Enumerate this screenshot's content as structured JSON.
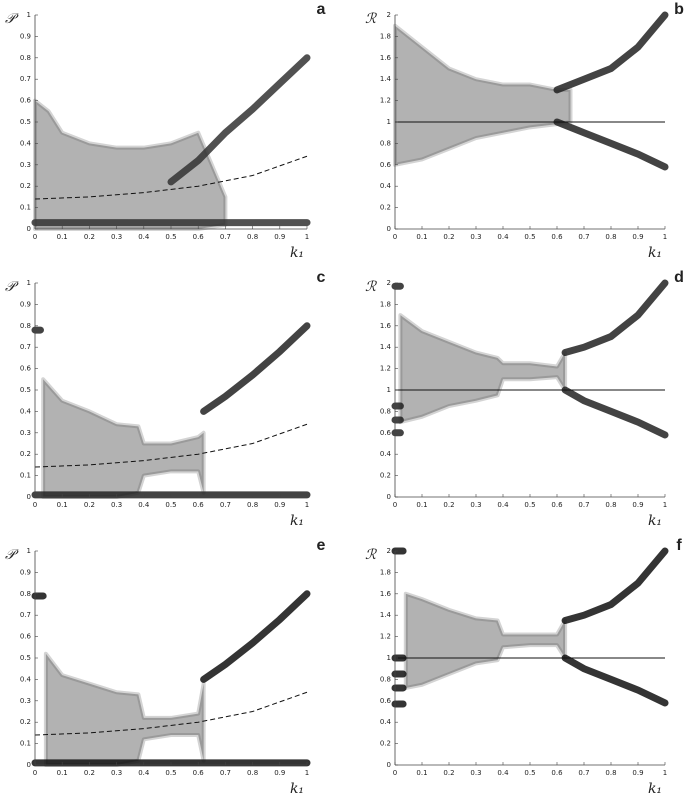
{
  "chart_data": [
    {
      "type": "scatter",
      "letter": "a",
      "y_label": "𝒫",
      "x_label": "k₁",
      "xlim": [
        0,
        1
      ],
      "xticks": [
        0,
        0.1,
        0.2,
        0.3,
        0.4,
        0.5,
        0.6,
        0.7,
        0.8,
        0.9,
        1
      ],
      "ylim": [
        0,
        1
      ],
      "yticks": [
        0,
        0.1,
        0.2,
        0.3,
        0.4,
        0.5,
        0.6,
        0.7,
        0.8,
        0.9,
        1
      ],
      "series": [
        {
          "style": "band",
          "color": "#555555",
          "x": [
            0,
            0.05,
            0.1,
            0.2,
            0.3,
            0.4,
            0.5,
            0.6,
            0.7
          ],
          "low": [
            0,
            0,
            0,
            0,
            0,
            0,
            0,
            0,
            0.02
          ],
          "high": [
            0.6,
            0.55,
            0.45,
            0.4,
            0.38,
            0.38,
            0.4,
            0.45,
            0.15
          ]
        },
        {
          "style": "branch",
          "color": "#333333",
          "x": [
            0.5,
            0.6,
            0.7,
            0.8,
            0.9,
            1
          ],
          "values": [
            0.22,
            0.32,
            0.45,
            0.56,
            0.68,
            0.8
          ]
        },
        {
          "style": "branch",
          "color": "#333333",
          "x": [
            0,
            1
          ],
          "values": [
            0.03,
            0.03
          ]
        },
        {
          "style": "dashed",
          "color": "#111111",
          "x": [
            0,
            0.2,
            0.4,
            0.6,
            0.8,
            1
          ],
          "values": [
            0.14,
            0.15,
            0.17,
            0.2,
            0.25,
            0.34
          ]
        }
      ]
    },
    {
      "type": "scatter",
      "letter": "b",
      "y_label": "ℛ",
      "x_label": "k₁",
      "xlim": [
        0,
        1
      ],
      "xticks": [
        0,
        0.1,
        0.2,
        0.3,
        0.4,
        0.5,
        0.6,
        0.7,
        0.8,
        0.9,
        1
      ],
      "ylim": [
        0,
        2
      ],
      "yticks": [
        0,
        0.2,
        0.4,
        0.6,
        0.8,
        1,
        1.2,
        1.4,
        1.6,
        1.8,
        2
      ],
      "series": [
        {
          "style": "band",
          "color": "#555555",
          "x": [
            0,
            0.1,
            0.2,
            0.3,
            0.4,
            0.5,
            0.6,
            0.65
          ],
          "low": [
            0.6,
            0.65,
            0.75,
            0.85,
            0.9,
            0.95,
            0.98,
            1.0
          ],
          "high": [
            1.9,
            1.7,
            1.5,
            1.4,
            1.35,
            1.35,
            1.3,
            1.3
          ]
        },
        {
          "style": "branch",
          "color": "#222222",
          "x": [
            0.6,
            0.7,
            0.8,
            0.9,
            1
          ],
          "values": [
            1.3,
            1.4,
            1.5,
            1.7,
            2.0
          ]
        },
        {
          "style": "branch",
          "color": "#222222",
          "x": [
            0.6,
            0.7,
            0.8,
            0.9,
            1
          ],
          "values": [
            1.0,
            0.9,
            0.8,
            0.7,
            0.58
          ]
        },
        {
          "style": "line",
          "color": "#111111",
          "x": [
            0,
            1
          ],
          "values": [
            1,
            1
          ]
        }
      ]
    },
    {
      "type": "scatter",
      "letter": "c",
      "y_label": "𝒫",
      "x_label": "k₁",
      "xlim": [
        0,
        1
      ],
      "xticks": [
        0,
        0.1,
        0.2,
        0.3,
        0.4,
        0.5,
        0.6,
        0.7,
        0.8,
        0.9,
        1
      ],
      "ylim": [
        0,
        1
      ],
      "yticks": [
        0,
        0.1,
        0.2,
        0.3,
        0.4,
        0.5,
        0.6,
        0.7,
        0.8,
        0.9,
        1
      ],
      "series": [
        {
          "style": "band",
          "color": "#555555",
          "x": [
            0.03,
            0.1,
            0.2,
            0.3,
            0.38,
            0.4,
            0.5,
            0.6,
            0.62
          ],
          "low": [
            0,
            0,
            0,
            0,
            0.02,
            0.1,
            0.12,
            0.12,
            0.02
          ],
          "high": [
            0.55,
            0.45,
            0.4,
            0.34,
            0.33,
            0.25,
            0.25,
            0.28,
            0.3
          ]
        },
        {
          "style": "branch",
          "color": "#222222",
          "x": [
            0.62,
            0.7,
            0.8,
            0.9,
            1
          ],
          "values": [
            0.4,
            0.47,
            0.57,
            0.68,
            0.8
          ]
        },
        {
          "style": "branch",
          "color": "#222222",
          "x": [
            0,
            0.02
          ],
          "values": [
            0.78,
            0.78
          ]
        },
        {
          "style": "branch",
          "color": "#222222",
          "x": [
            0,
            1
          ],
          "values": [
            0.01,
            0.01
          ]
        },
        {
          "style": "dashed",
          "color": "#111111",
          "x": [
            0,
            0.2,
            0.4,
            0.6,
            0.8,
            1
          ],
          "values": [
            0.14,
            0.15,
            0.17,
            0.2,
            0.25,
            0.34
          ]
        }
      ]
    },
    {
      "type": "scatter",
      "letter": "d",
      "y_label": "ℛ",
      "x_label": "k₁",
      "xlim": [
        0,
        1
      ],
      "xticks": [
        0,
        0.1,
        0.2,
        0.3,
        0.4,
        0.5,
        0.6,
        0.7,
        0.8,
        0.9,
        1
      ],
      "ylim": [
        0,
        2
      ],
      "yticks": [
        0,
        0.2,
        0.4,
        0.6,
        0.8,
        1,
        1.2,
        1.4,
        1.6,
        1.8,
        2
      ],
      "series": [
        {
          "style": "band",
          "color": "#555555",
          "x": [
            0.02,
            0.1,
            0.2,
            0.3,
            0.38,
            0.4,
            0.5,
            0.6,
            0.63
          ],
          "low": [
            0.7,
            0.75,
            0.85,
            0.9,
            0.95,
            1.1,
            1.1,
            1.12,
            1.0
          ],
          "high": [
            1.7,
            1.55,
            1.45,
            1.35,
            1.3,
            1.25,
            1.25,
            1.22,
            1.35
          ]
        },
        {
          "style": "branch",
          "color": "#222222",
          "x": [
            0.63,
            0.7,
            0.8,
            0.9,
            1
          ],
          "values": [
            1.35,
            1.4,
            1.5,
            1.7,
            2.0
          ]
        },
        {
          "style": "branch",
          "color": "#222222",
          "x": [
            0.63,
            0.7,
            0.8,
            0.9,
            1
          ],
          "values": [
            1.0,
            0.9,
            0.8,
            0.7,
            0.58
          ]
        },
        {
          "style": "branch",
          "color": "#222222",
          "x": [
            0,
            0.02
          ],
          "values": [
            1.97,
            1.97
          ]
        },
        {
          "style": "branch",
          "color": "#222222",
          "x": [
            0,
            0.02
          ],
          "values": [
            0.85,
            0.85
          ]
        },
        {
          "style": "branch",
          "color": "#222222",
          "x": [
            0,
            0.02
          ],
          "values": [
            0.72,
            0.72
          ]
        },
        {
          "style": "branch",
          "color": "#222222",
          "x": [
            0,
            0.02
          ],
          "values": [
            0.6,
            0.6
          ]
        },
        {
          "style": "line",
          "color": "#111111",
          "x": [
            0,
            1
          ],
          "values": [
            1,
            1
          ]
        }
      ]
    },
    {
      "type": "scatter",
      "letter": "e",
      "y_label": "𝒫",
      "x_label": "k₁",
      "xlim": [
        0,
        1
      ],
      "xticks": [
        0,
        0.1,
        0.2,
        0.3,
        0.4,
        0.5,
        0.6,
        0.7,
        0.8,
        0.9,
        1
      ],
      "ylim": [
        0,
        1
      ],
      "yticks": [
        0,
        0.1,
        0.2,
        0.3,
        0.4,
        0.5,
        0.6,
        0.7,
        0.8,
        0.9,
        1
      ],
      "series": [
        {
          "style": "band",
          "color": "#555555",
          "x": [
            0.04,
            0.1,
            0.2,
            0.3,
            0.38,
            0.4,
            0.5,
            0.6,
            0.62
          ],
          "low": [
            0,
            0,
            0,
            0,
            0.02,
            0.12,
            0.14,
            0.14,
            0.02
          ],
          "high": [
            0.52,
            0.42,
            0.38,
            0.34,
            0.33,
            0.22,
            0.22,
            0.24,
            0.38
          ]
        },
        {
          "style": "branch",
          "color": "#111111",
          "x": [
            0.62,
            0.7,
            0.8,
            0.9,
            1
          ],
          "values": [
            0.4,
            0.47,
            0.57,
            0.68,
            0.8
          ]
        },
        {
          "style": "branch",
          "color": "#111111",
          "x": [
            0,
            0.03
          ],
          "values": [
            0.79,
            0.79
          ]
        },
        {
          "style": "branch",
          "color": "#111111",
          "x": [
            0,
            1
          ],
          "values": [
            0.01,
            0.01
          ]
        },
        {
          "style": "dashed",
          "color": "#111111",
          "x": [
            0,
            0.2,
            0.4,
            0.6,
            0.8,
            1
          ],
          "values": [
            0.14,
            0.15,
            0.17,
            0.2,
            0.25,
            0.34
          ]
        }
      ]
    },
    {
      "type": "scatter",
      "letter": "f",
      "y_label": "ℛ",
      "x_label": "k₁",
      "xlim": [
        0,
        1
      ],
      "xticks": [
        0,
        0.1,
        0.2,
        0.3,
        0.4,
        0.5,
        0.6,
        0.7,
        0.8,
        0.9,
        1
      ],
      "ylim": [
        0,
        2
      ],
      "yticks": [
        0,
        0.2,
        0.4,
        0.6,
        0.8,
        1,
        1.2,
        1.4,
        1.6,
        1.8,
        2
      ],
      "series": [
        {
          "style": "band",
          "color": "#555555",
          "x": [
            0.04,
            0.1,
            0.2,
            0.3,
            0.38,
            0.4,
            0.5,
            0.6,
            0.63
          ],
          "low": [
            0.72,
            0.75,
            0.85,
            0.95,
            0.98,
            1.1,
            1.12,
            1.12,
            1.0
          ],
          "high": [
            1.6,
            1.55,
            1.45,
            1.37,
            1.35,
            1.22,
            1.22,
            1.22,
            1.35
          ]
        },
        {
          "style": "branch",
          "color": "#111111",
          "x": [
            0.63,
            0.7,
            0.8,
            0.9,
            1
          ],
          "values": [
            1.35,
            1.4,
            1.5,
            1.7,
            2.0
          ]
        },
        {
          "style": "branch",
          "color": "#111111",
          "x": [
            0.63,
            0.7,
            0.8,
            0.9,
            1
          ],
          "values": [
            1.0,
            0.9,
            0.8,
            0.7,
            0.58
          ]
        },
        {
          "style": "branch",
          "color": "#111111",
          "x": [
            0,
            0.03
          ],
          "values": [
            2.0,
            2.0
          ]
        },
        {
          "style": "branch",
          "color": "#111111",
          "x": [
            0,
            0.03
          ],
          "values": [
            1.0,
            1.0
          ]
        },
        {
          "style": "branch",
          "color": "#111111",
          "x": [
            0,
            0.03
          ],
          "values": [
            0.85,
            0.85
          ]
        },
        {
          "style": "branch",
          "color": "#111111",
          "x": [
            0,
            0.03
          ],
          "values": [
            0.72,
            0.72
          ]
        },
        {
          "style": "branch",
          "color": "#111111",
          "x": [
            0,
            0.03
          ],
          "values": [
            0.57,
            0.57
          ]
        },
        {
          "style": "line",
          "color": "#111111",
          "x": [
            0,
            1
          ],
          "values": [
            1,
            1
          ]
        }
      ]
    }
  ]
}
